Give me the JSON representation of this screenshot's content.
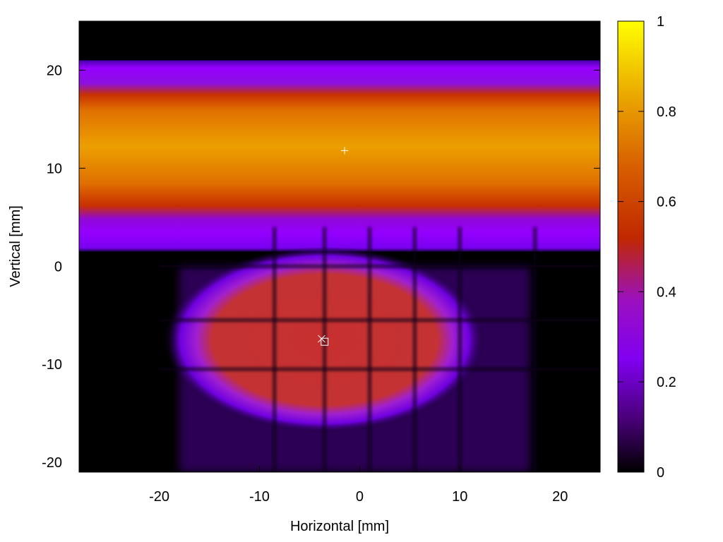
{
  "chart_data": {
    "type": "heatmap",
    "title": "",
    "xlabel": "Horizontal [mm]",
    "ylabel": "Vertical [mm]",
    "xlim": [
      -28,
      24
    ],
    "ylim": [
      -21,
      25
    ],
    "x_ticks": [
      -20,
      -10,
      0,
      10,
      20
    ],
    "y_ticks": [
      -20,
      -10,
      0,
      10,
      20
    ],
    "colorbar": {
      "range": [
        0,
        1
      ],
      "ticks": [
        0,
        0.2,
        0.4,
        0.6,
        0.8,
        1
      ],
      "colormap": [
        "#000000",
        "#5a0096",
        "#8c00ff",
        "#c83200",
        "#e67800",
        "#f0c800",
        "#ffff00"
      ]
    },
    "regions": [
      {
        "label": "upper band",
        "x": [
          -28,
          24
        ],
        "y": [
          1.5,
          21
        ],
        "peak_value": 0.85,
        "peak_y": 12
      },
      {
        "label": "lower ellipse",
        "center": [
          -3.5,
          -7.5
        ],
        "radius": [
          16,
          9.5
        ],
        "peak_value": 0.48
      },
      {
        "label": "background field",
        "x": [
          -18,
          17
        ],
        "y": [
          -21,
          0
        ],
        "value": 0.08
      }
    ],
    "dark_lines": {
      "vertical_x": [
        -8.5,
        -3.5,
        1,
        5.5,
        10,
        17.5
      ],
      "horizontal_y": [
        0,
        -5.5,
        -10.5
      ]
    },
    "markers": [
      {
        "symbol": "+",
        "x": -1.5,
        "y": 11.8
      },
      {
        "symbol": "×",
        "x": -3.8,
        "y": -7.4
      },
      {
        "symbol": "□",
        "x": -3.5,
        "y": -7.7
      }
    ],
    "grid": false,
    "legend": "colorbar-right"
  }
}
